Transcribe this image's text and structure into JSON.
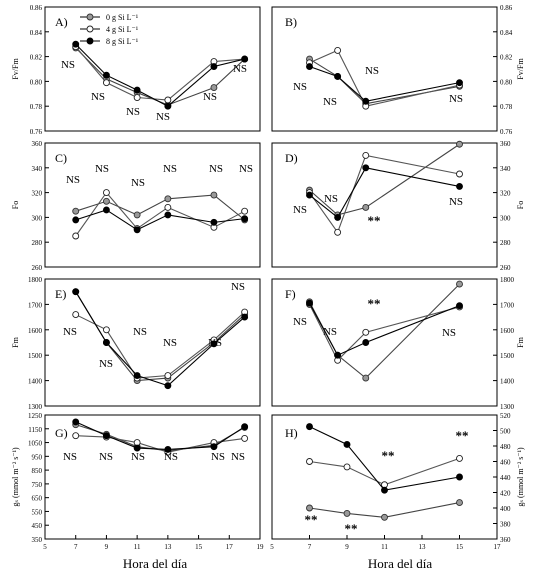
{
  "legend": {
    "entries": [
      {
        "label": "0 g Si L⁻¹",
        "color": "#999999"
      },
      {
        "label": "4 g Si L⁻¹",
        "color": "#ffffff"
      },
      {
        "label": "8 g Si L⁻¹",
        "color": "#000000"
      }
    ],
    "placement": "top-left of panel A"
  },
  "chart_data": [
    {
      "panel": "A)",
      "type": "line",
      "side": "left",
      "ylabel": "Fv/Fm",
      "x": [
        7,
        9,
        11,
        13,
        16,
        18
      ],
      "xlim": [
        5,
        19
      ],
      "ylim": [
        0.76,
        0.86
      ],
      "yticks": [
        0.76,
        0.78,
        0.8,
        0.82,
        0.84,
        0.86
      ],
      "series": [
        {
          "name": "0 g Si L⁻¹",
          "values": [
            0.827,
            0.802,
            0.791,
            0.781,
            0.795,
            0.818
          ]
        },
        {
          "name": "4 g Si L⁻¹",
          "values": [
            0.828,
            0.799,
            0.787,
            0.785,
            0.816,
            0.818
          ]
        },
        {
          "name": "8 g Si L⁻¹",
          "values": [
            0.83,
            0.805,
            0.793,
            0.78,
            0.812,
            0.818
          ]
        }
      ],
      "annotations": [
        "NS",
        "NS",
        "NS",
        "NS",
        "NS",
        "NS"
      ]
    },
    {
      "panel": "B)",
      "type": "line",
      "side": "right",
      "ylabel": "Fv/Fm",
      "x": [
        7,
        8.5,
        10,
        15
      ],
      "xlim": [
        5,
        17
      ],
      "ylim": [
        0.76,
        0.86
      ],
      "yticks": [
        0.76,
        0.78,
        0.8,
        0.82,
        0.84,
        0.86
      ],
      "series": [
        {
          "name": "0 g Si L⁻¹",
          "values": [
            0.818,
            0.804,
            0.782,
            0.796
          ]
        },
        {
          "name": "4 g Si L⁻¹",
          "values": [
            0.815,
            0.825,
            0.78,
            0.797
          ]
        },
        {
          "name": "8 g Si L⁻¹",
          "values": [
            0.812,
            0.804,
            0.784,
            0.799
          ]
        }
      ],
      "annotations": [
        "NS",
        "NS",
        "NS",
        "NS"
      ]
    },
    {
      "panel": "C)",
      "type": "line",
      "side": "left",
      "ylabel": "Fo",
      "x": [
        7,
        9,
        11,
        13,
        16,
        18
      ],
      "xlim": [
        5,
        19
      ],
      "ylim": [
        260,
        360
      ],
      "yticks": [
        260,
        280,
        300,
        320,
        340,
        360
      ],
      "series": [
        {
          "name": "0 g Si L⁻¹",
          "values": [
            305,
            313,
            302,
            315,
            318,
            298
          ]
        },
        {
          "name": "4 g Si L⁻¹",
          "values": [
            285,
            320,
            291,
            308,
            292,
            305
          ]
        },
        {
          "name": "8 g Si L⁻¹",
          "values": [
            298,
            306,
            290,
            302,
            296,
            299
          ]
        }
      ],
      "annotations": [
        "NS",
        "NS",
        "NS",
        "NS",
        "NS",
        "NS"
      ]
    },
    {
      "panel": "D)",
      "type": "line",
      "side": "right",
      "ylabel": "Fo",
      "x": [
        7,
        8.5,
        10,
        15
      ],
      "xlim": [
        5,
        17
      ],
      "ylim": [
        260,
        360
      ],
      "yticks": [
        260,
        280,
        300,
        320,
        340,
        360
      ],
      "series": [
        {
          "name": "0 g Si L⁻¹",
          "values": [
            322,
            302,
            308,
            359
          ]
        },
        {
          "name": "4 g Si L⁻¹",
          "values": [
            320,
            288,
            350,
            335
          ]
        },
        {
          "name": "8 g Si L⁻¹",
          "values": [
            318,
            300,
            340,
            325
          ]
        }
      ],
      "annotations": [
        "NS",
        "NS",
        "**",
        "NS"
      ]
    },
    {
      "panel": "E)",
      "type": "line",
      "side": "left",
      "ylabel": "Fm",
      "x": [
        7,
        9,
        11,
        13,
        16,
        18
      ],
      "xlim": [
        5,
        19
      ],
      "ylim": [
        1300,
        1800
      ],
      "yticks": [
        1300,
        1400,
        1500,
        1600,
        1700,
        1800
      ],
      "series": [
        {
          "name": "0 g Si L⁻¹",
          "values": [
            1750,
            1550,
            1400,
            1410,
            1550,
            1660
          ]
        },
        {
          "name": "4 g Si L⁻¹",
          "values": [
            1660,
            1600,
            1410,
            1420,
            1560,
            1670
          ]
        },
        {
          "name": "8 g Si L⁻¹",
          "values": [
            1750,
            1550,
            1420,
            1380,
            1545,
            1650
          ]
        }
      ],
      "annotations": [
        "NS",
        "NS",
        "NS",
        "NS",
        "NS",
        "NS"
      ]
    },
    {
      "panel": "F)",
      "type": "line",
      "side": "right",
      "ylabel": "Fm",
      "x": [
        7,
        8.5,
        10,
        15
      ],
      "xlim": [
        5,
        17
      ],
      "ylim": [
        1300,
        1800
      ],
      "yticks": [
        1300,
        1400,
        1500,
        1600,
        1700,
        1800
      ],
      "series": [
        {
          "name": "0 g Si L⁻¹",
          "values": [
            1710,
            1500,
            1410,
            1780
          ]
        },
        {
          "name": "4 g Si L⁻¹",
          "values": [
            1700,
            1480,
            1590,
            1690
          ]
        },
        {
          "name": "8 g Si L⁻¹",
          "values": [
            1705,
            1500,
            1550,
            1695
          ]
        }
      ],
      "annotations": [
        "NS",
        "NS",
        "**",
        "NS"
      ]
    },
    {
      "panel": "G)",
      "type": "line",
      "side": "left",
      "ylabel": "gₛ (mmol m⁻² s⁻¹)",
      "x": [
        7,
        9,
        11,
        13,
        16,
        18
      ],
      "xlim": [
        5,
        19
      ],
      "xticks": [
        5,
        7,
        9,
        11,
        13,
        15,
        17,
        19
      ],
      "ylim": [
        350,
        1250
      ],
      "yticks": [
        350,
        450,
        550,
        650,
        750,
        850,
        950,
        1050,
        1150,
        1250
      ],
      "series": [
        {
          "name": "0 g Si L⁻¹",
          "values": [
            1180,
            1110,
            1020,
            990,
            1030,
            1160
          ]
        },
        {
          "name": "4 g Si L⁻¹",
          "values": [
            1100,
            1090,
            1050,
            980,
            1050,
            1080
          ]
        },
        {
          "name": "8 g Si L⁻¹",
          "values": [
            1200,
            1100,
            1010,
            1000,
            1020,
            1165
          ]
        }
      ],
      "annotations": [
        "NS",
        "NS",
        "NS",
        "NS",
        "NS",
        "NS"
      ]
    },
    {
      "panel": "H)",
      "type": "line",
      "side": "right",
      "ylabel": "gₛ (mmol m⁻² s⁻¹)",
      "x": [
        7,
        9,
        11,
        15
      ],
      "xlim": [
        5,
        17
      ],
      "xticks": [
        5,
        7,
        9,
        11,
        13,
        15,
        17
      ],
      "ylim": [
        360,
        520
      ],
      "yticks": [
        360,
        380,
        400,
        420,
        440,
        460,
        480,
        500,
        520
      ],
      "series": [
        {
          "name": "0 g Si L⁻¹",
          "values": [
            400,
            393,
            388,
            407
          ]
        },
        {
          "name": "4 g Si L⁻¹",
          "values": [
            460,
            453,
            430,
            464
          ]
        },
        {
          "name": "8 g Si L⁻¹",
          "values": [
            505,
            482,
            423,
            440
          ]
        }
      ],
      "annotations": [
        "**",
        "**",
        "**",
        "**"
      ]
    }
  ],
  "xlabels": {
    "left": "Hora del día",
    "right": "Hora del día"
  }
}
